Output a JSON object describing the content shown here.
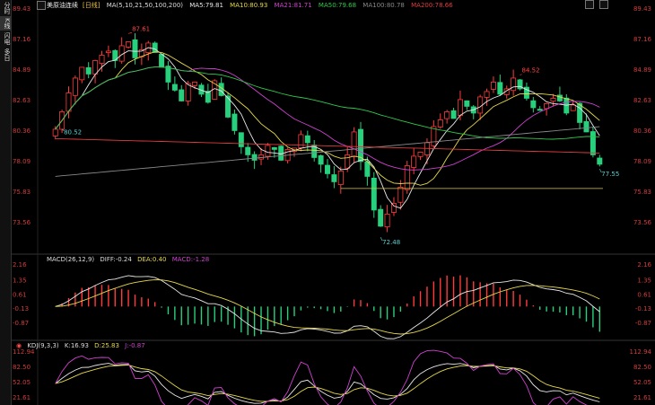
{
  "sidebar": {
    "tabs": [
      {
        "label": "分时"
      },
      {
        "label": "K线"
      },
      {
        "label": "闪电"
      },
      {
        "label": "多日"
      }
    ]
  },
  "main": {
    "symbol": "美原油连续",
    "period": "[日线]",
    "ma_label": "MA(5,10,21,50,100,200)",
    "ma": [
      {
        "label": "MA5:79.81",
        "color": "#e8e8e8"
      },
      {
        "label": "MA10:80.93",
        "color": "#e6d84a"
      },
      {
        "label": "MA21:81.71",
        "color": "#d040d0"
      },
      {
        "label": "MA50:79.68",
        "color": "#2fc94a"
      },
      {
        "label": "MA100:80.78",
        "color": "#888888"
      },
      {
        "label": "MA200:78.66",
        "color": "#e03c3c"
      }
    ],
    "y_ticks": [
      "89.43",
      "87.16",
      "84.89",
      "82.63",
      "80.36",
      "78.09",
      "75.83",
      "73.56"
    ],
    "annotations": [
      {
        "text": "87.61",
        "color": "#ff4444"
      },
      {
        "text": "80.52",
        "color": "#5ad0d0"
      },
      {
        "text": "72.48",
        "color": "#5ad0d0"
      },
      {
        "text": "84.52",
        "color": "#ff4444"
      },
      {
        "text": "77.55",
        "color": "#5ad0d0"
      }
    ],
    "colors": {
      "up": "#ff3b3b",
      "down": "#26d07c",
      "bg": "#000000",
      "axis_text": "#d23c3c"
    }
  },
  "macd": {
    "label": "MACD(26,12,9)",
    "diff": "DIFF:-0.24",
    "dea": "DEA:0.40",
    "macd": "MACD:-1.28",
    "y_ticks": [
      "2.16",
      "1.35",
      "0.61",
      "-0.13",
      "-0.87"
    ]
  },
  "kdj": {
    "icon": "settings-dot-icon",
    "label": "KDJ(9,3,3)",
    "k": "K:16.93",
    "d": "D:25.83",
    "j": "J:-0.87",
    "y_ticks": [
      "112.94",
      "82.50",
      "52.05",
      "21.61"
    ]
  },
  "chart_data": {
    "type": "candlestick",
    "closes": [
      80.5,
      81.8,
      83.2,
      84.3,
      85.1,
      84.6,
      85.6,
      86.0,
      86.3,
      85.6,
      86.7,
      87.0,
      85.8,
      86.4,
      86.9,
      86.2,
      85.1,
      84.0,
      83.4,
      82.6,
      83.9,
      84.0,
      83.1,
      82.5,
      84.1,
      83.0,
      81.4,
      80.4,
      79.2,
      78.6,
      78.2,
      78.6,
      79.3,
      79.0,
      78.2,
      79.0,
      79.1,
      80.1,
      79.5,
      78.4,
      77.9,
      77.2,
      76.6,
      77.4,
      78.6,
      80.3,
      78.1,
      77.0,
      74.5,
      73.3,
      74.2,
      75.0,
      76.2,
      77.8,
      78.5,
      78.8,
      79.5,
      80.7,
      81.2,
      81.8,
      81.3,
      82.7,
      82.2,
      81.7,
      82.9,
      83.3,
      84.0,
      83.1,
      83.5,
      84.3,
      83.5,
      82.8,
      82.1,
      81.9,
      82.4,
      82.8,
      82.6,
      81.7,
      82.3,
      81.0,
      80.3,
      78.6,
      77.9
    ],
    "highs": {
      "max": "87.61",
      "max2": "84.52"
    },
    "lows": {
      "min": "72.48",
      "last_low": "77.55",
      "first_low": "80.52"
    },
    "ylim": [
      72.5,
      89.43
    ]
  }
}
